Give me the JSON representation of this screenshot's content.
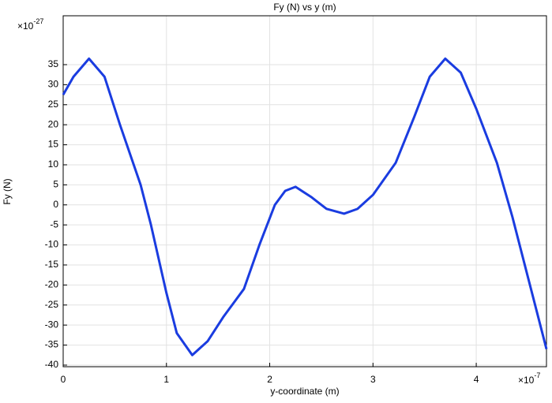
{
  "chart_data": {
    "type": "line",
    "title": "Fy (N) vs y (m)",
    "x_label": "y-coordinate (m)",
    "y_label": "Fy (N)",
    "x_multiplier": {
      "base": "×10",
      "exponent": "-7"
    },
    "y_multiplier": {
      "base": "×10",
      "exponent": "-27"
    },
    "x": [
      0,
      0.1,
      0.25,
      0.4,
      0.55,
      0.75,
      0.85,
      1.0,
      1.1,
      1.25,
      1.4,
      1.55,
      1.75,
      1.9,
      2.05,
      2.15,
      2.25,
      2.4,
      2.55,
      2.72,
      2.85,
      3.0,
      3.22,
      3.4,
      3.55,
      3.7,
      3.85,
      4.0,
      4.2,
      4.35,
      4.5,
      4.68
    ],
    "series": [
      {
        "name": "Fy",
        "color": "#1a3ce0",
        "values": [
          27.5,
          32,
          36.5,
          32,
          20,
          5,
          -5,
          -22,
          -32,
          -37.5,
          -34,
          -28,
          -21,
          -10,
          0,
          3.5,
          4.5,
          2,
          -1,
          -2.2,
          -1,
          2.5,
          10.5,
          22,
          32,
          36.5,
          33,
          24,
          10.5,
          -3,
          -18,
          -36
        ]
      }
    ],
    "xlim": [
      0,
      4.68
    ],
    "ylim": [
      -40.4,
      47.2
    ],
    "xticks": [
      0,
      1,
      2,
      3,
      4
    ],
    "yticks": [
      35,
      30,
      25,
      20,
      15,
      10,
      5,
      0,
      -5,
      -10,
      -15,
      -20,
      -25,
      -30,
      -35,
      -40
    ],
    "grid": true
  }
}
